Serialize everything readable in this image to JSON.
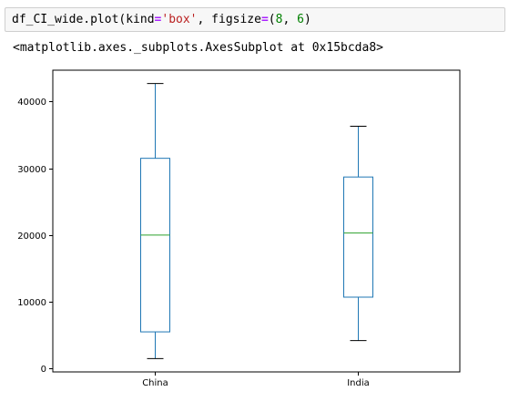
{
  "code_cell": {
    "source_parts": [
      {
        "text": "df_CI_wide.plot(kind",
        "cls": ""
      },
      {
        "text": "=",
        "cls": "tok-op"
      },
      {
        "text": "'box'",
        "cls": "tok-str"
      },
      {
        "text": ", figsize",
        "cls": ""
      },
      {
        "text": "=",
        "cls": "tok-op"
      },
      {
        "text": "(",
        "cls": ""
      },
      {
        "text": "8",
        "cls": "tok-num"
      },
      {
        "text": ", ",
        "cls": ""
      },
      {
        "text": "6",
        "cls": "tok-num"
      },
      {
        "text": ")",
        "cls": ""
      }
    ]
  },
  "output": {
    "text": "<matplotlib.axes._subplots.AxesSubplot at 0x15bcda8>"
  },
  "colors": {
    "box": "#1f77b4",
    "median": "#2ca02c",
    "whisker": "#1f77b4",
    "cap": "#000000",
    "axes": "#000000"
  },
  "chart_data": {
    "type": "box",
    "categories": [
      "China",
      "India"
    ],
    "boxes": [
      {
        "category": "China",
        "min": 1500,
        "q1": 5500,
        "median": 20000,
        "q3": 31500,
        "max": 42700
      },
      {
        "category": "India",
        "min": 4200,
        "q1": 10700,
        "median": 20300,
        "q3": 28700,
        "max": 36300
      }
    ],
    "yticks": [
      0,
      10000,
      20000,
      30000,
      40000
    ],
    "ylim": [
      -500,
      44700
    ],
    "title": "",
    "xlabel": "",
    "ylabel": "",
    "grid": false
  }
}
